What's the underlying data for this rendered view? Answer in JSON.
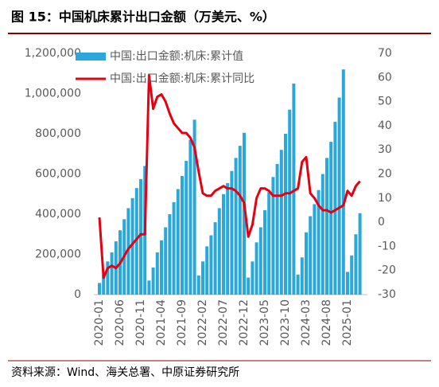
{
  "chart_data": {
    "type": "bar-line",
    "title": "图 15：中国机床累计出口金额（万美元、%）",
    "source": "资料来源：Wind、海关总署、中原证券研究所",
    "categories": [
      "2020-01",
      null,
      null,
      null,
      null,
      "2020-06",
      null,
      null,
      null,
      null,
      "2020-11",
      null,
      null,
      null,
      null,
      "2021-04",
      null,
      null,
      null,
      null,
      "2021-09",
      null,
      null,
      null,
      null,
      "2022-02",
      null,
      null,
      null,
      null,
      "2022-07",
      null,
      null,
      null,
      null,
      "2022-12",
      null,
      null,
      null,
      null,
      "2023-05",
      null,
      null,
      null,
      null,
      "2023-10",
      null,
      null,
      null,
      null,
      "2024-03",
      null,
      null,
      null,
      null,
      "2024-08",
      null,
      null,
      null,
      null,
      "2025-01",
      null,
      null,
      null
    ],
    "series": [
      {
        "name": "中国:出口金额:机床:累计值",
        "type": "bar",
        "color": "#2aa7db",
        "axis": "y",
        "values": [
          58000,
          100000,
          165000,
          210000,
          265000,
          320000,
          375000,
          430000,
          480000,
          530000,
          575000,
          640000,
          70000,
          135000,
          210000,
          270000,
          335000,
          400000,
          460000,
          525000,
          590000,
          665000,
          770000,
          870000,
          95000,
          165000,
          240000,
          295000,
          360000,
          430000,
          500000,
          555000,
          615000,
          680000,
          740000,
          805000,
          85000,
          165000,
          260000,
          335000,
          420000,
          510000,
          585000,
          650000,
          720000,
          800000,
          920000,
          1050000,
          100000,
          185000,
          310000,
          390000,
          450000,
          520000,
          600000,
          680000,
          760000,
          860000,
          980000,
          1120000,
          113000,
          195000,
          300000,
          405000
        ]
      },
      {
        "name": "中国:出口金额:机床:累计同比",
        "type": "line",
        "color": "#e60012",
        "axis": "y2",
        "values": [
          2,
          -23,
          -19,
          -18,
          -19,
          -17,
          -14,
          -11,
          -9,
          -7,
          -5,
          -5,
          61,
          47,
          52,
          53,
          50,
          45,
          41,
          39,
          37,
          37,
          35,
          31,
          21,
          12,
          11,
          11,
          13,
          14,
          15,
          14,
          14,
          13,
          11,
          8,
          -6,
          -1,
          10,
          14,
          14,
          13,
          11,
          11,
          11,
          12,
          12,
          13,
          14,
          25,
          27,
          12,
          10,
          7,
          5,
          5,
          4,
          5,
          6,
          7,
          13,
          11,
          15,
          17
        ]
      }
    ],
    "ylim": [
      0,
      1200000
    ],
    "yticks": [
      0,
      {
        "value": 200000,
        "label": "200,000"
      },
      {
        "value": 400000,
        "label": "400,000"
      },
      {
        "value": 600000,
        "label": "600,000"
      },
      {
        "value": 800000,
        "label": "800,000"
      },
      {
        "value": 1000000,
        "label": "1,000,000"
      },
      {
        "value": 1200000,
        "label": "1,200,000"
      }
    ],
    "y2lim": [
      -30,
      70
    ],
    "y2ticks": [
      -30,
      -20,
      -10,
      0,
      10,
      20,
      30,
      40,
      50,
      60,
      70
    ],
    "grid": false,
    "legend": "top-left"
  }
}
